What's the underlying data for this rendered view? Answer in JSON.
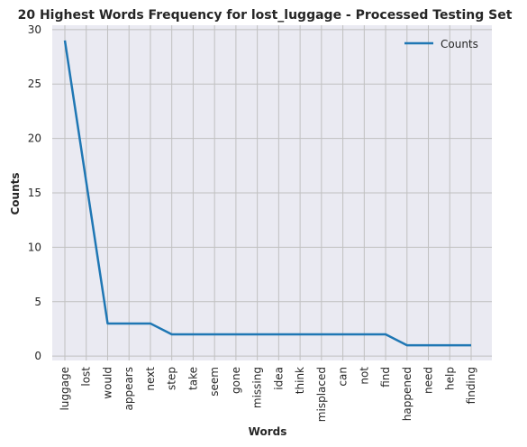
{
  "chart_data": {
    "type": "line",
    "title": "20 Highest Words Frequency for lost_luggage - Processed Testing Set",
    "xlabel": "Words",
    "ylabel": "Counts",
    "categories": [
      "luggage",
      "lost",
      "would",
      "appears",
      "next",
      "step",
      "take",
      "seem",
      "gone",
      "missing",
      "idea",
      "think",
      "misplaced",
      "can",
      "not",
      "find",
      "happened",
      "need",
      "help",
      "finding"
    ],
    "series": [
      {
        "name": "Counts",
        "values": [
          29,
          16,
          3,
          3,
          3,
          2,
          2,
          2,
          2,
          2,
          2,
          2,
          2,
          2,
          2,
          2,
          1,
          1,
          1,
          1
        ]
      }
    ],
    "yticks": [
      0,
      5,
      10,
      15,
      20,
      25,
      30
    ],
    "ylim": [
      -0.4,
      30.4
    ],
    "grid": true,
    "legend_position": "top-right",
    "colors": {
      "line": "#1f77b4",
      "plot_background": "#eaeaf2",
      "grid": "#c0c0c0",
      "text": "#262626"
    }
  }
}
